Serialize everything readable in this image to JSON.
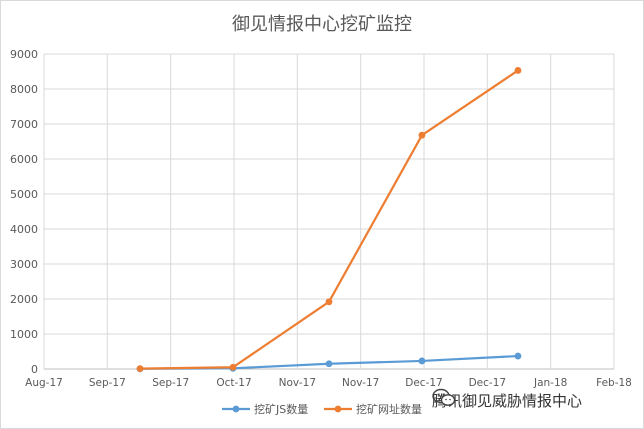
{
  "chart_data": {
    "type": "line",
    "title": "御见情报中心挖矿监控",
    "y_ticks": [
      "0",
      "1000",
      "2000",
      "3000",
      "4000",
      "5000",
      "6000",
      "7000",
      "8000",
      "9000"
    ],
    "x_ticks": [
      "Aug-17",
      "Sep-17",
      "Sep-17",
      "Oct-17",
      "Nov-17",
      "Nov-17",
      "Dec-17",
      "Dec-17",
      "Jan-18",
      "Feb-18"
    ],
    "ylim": [
      0,
      9000
    ],
    "xlim": [
      "2017-08-01",
      "2018-02-01"
    ],
    "grid": true,
    "legend_position": "bottom",
    "series": [
      {
        "name": "挖矿JS数量",
        "color": "#5b9bd5",
        "points": [
          {
            "x": "2017-09-01",
            "y": 5
          },
          {
            "x": "2017-10-01",
            "y": 20
          },
          {
            "x": "2017-11-01",
            "y": 150
          },
          {
            "x": "2017-12-01",
            "y": 230
          },
          {
            "x": "2018-01-01",
            "y": 370
          }
        ]
      },
      {
        "name": "挖矿网址数量",
        "color": "#ed7d31",
        "points": [
          {
            "x": "2017-09-01",
            "y": 10
          },
          {
            "x": "2017-10-01",
            "y": 50
          },
          {
            "x": "2017-11-01",
            "y": 1920
          },
          {
            "x": "2017-12-01",
            "y": 6680
          },
          {
            "x": "2018-01-01",
            "y": 8530
          }
        ]
      }
    ]
  },
  "watermark": {
    "text": "腾讯御见威胁情报中心",
    "icon": "wechat-icon"
  }
}
